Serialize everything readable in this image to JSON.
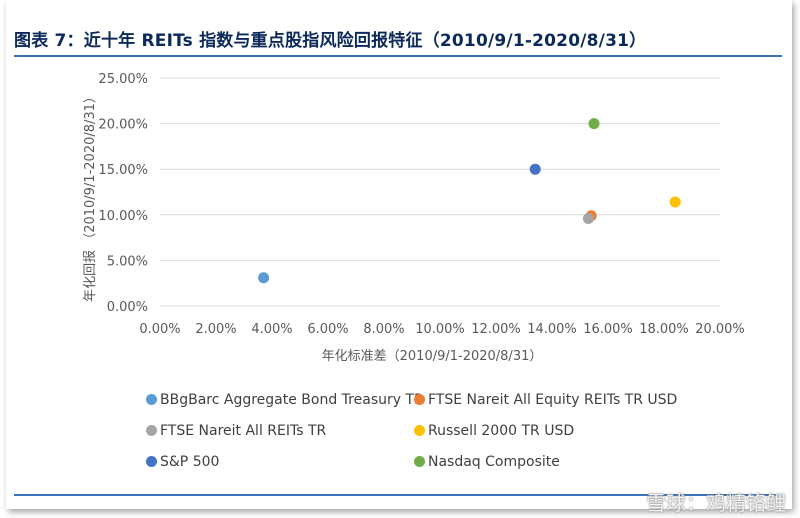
{
  "title": "图表 7：近十年 REITs 指数与重点股指风险回报特征（2010/9/1-2020/8/31）",
  "watermark": "雪球：鸡精铬鲤",
  "chart_data": {
    "type": "scatter",
    "xlabel": "年化标准差（2010/9/1-2020/8/31）",
    "ylabel": "年化回报 （2010/9/1-2020/8/31）",
    "xlim": [
      0,
      20
    ],
    "ylim": [
      0,
      25
    ],
    "x_ticks": [
      "0.00%",
      "2.00%",
      "4.00%",
      "6.00%",
      "8.00%",
      "10.00%",
      "12.00%",
      "14.00%",
      "16.00%",
      "18.00%",
      "20.00%"
    ],
    "y_ticks": [
      "0.00%",
      "5.00%",
      "10.00%",
      "15.00%",
      "20.00%",
      "25.00%"
    ],
    "grid": true,
    "legend_position": "bottom",
    "series": [
      {
        "name": "BBgBarc Aggregate Bond Treasury TR",
        "color": "#5b9bd5",
        "x": 3.7,
        "y": 3.1
      },
      {
        "name": "FTSE Nareit All Equity REITs TR USD",
        "color": "#ed7d31",
        "x": 15.4,
        "y": 9.9
      },
      {
        "name": "FTSE Nareit All REITs TR",
        "color": "#a5a5a5",
        "x": 15.3,
        "y": 9.6
      },
      {
        "name": "Russell 2000 TR USD",
        "color": "#ffc000",
        "x": 18.4,
        "y": 11.4
      },
      {
        "name": "S&P 500",
        "color": "#4472c4",
        "x": 13.4,
        "y": 15.0
      },
      {
        "name": "Nasdaq Composite",
        "color": "#70ad47",
        "x": 15.5,
        "y": 20.0
      }
    ]
  }
}
